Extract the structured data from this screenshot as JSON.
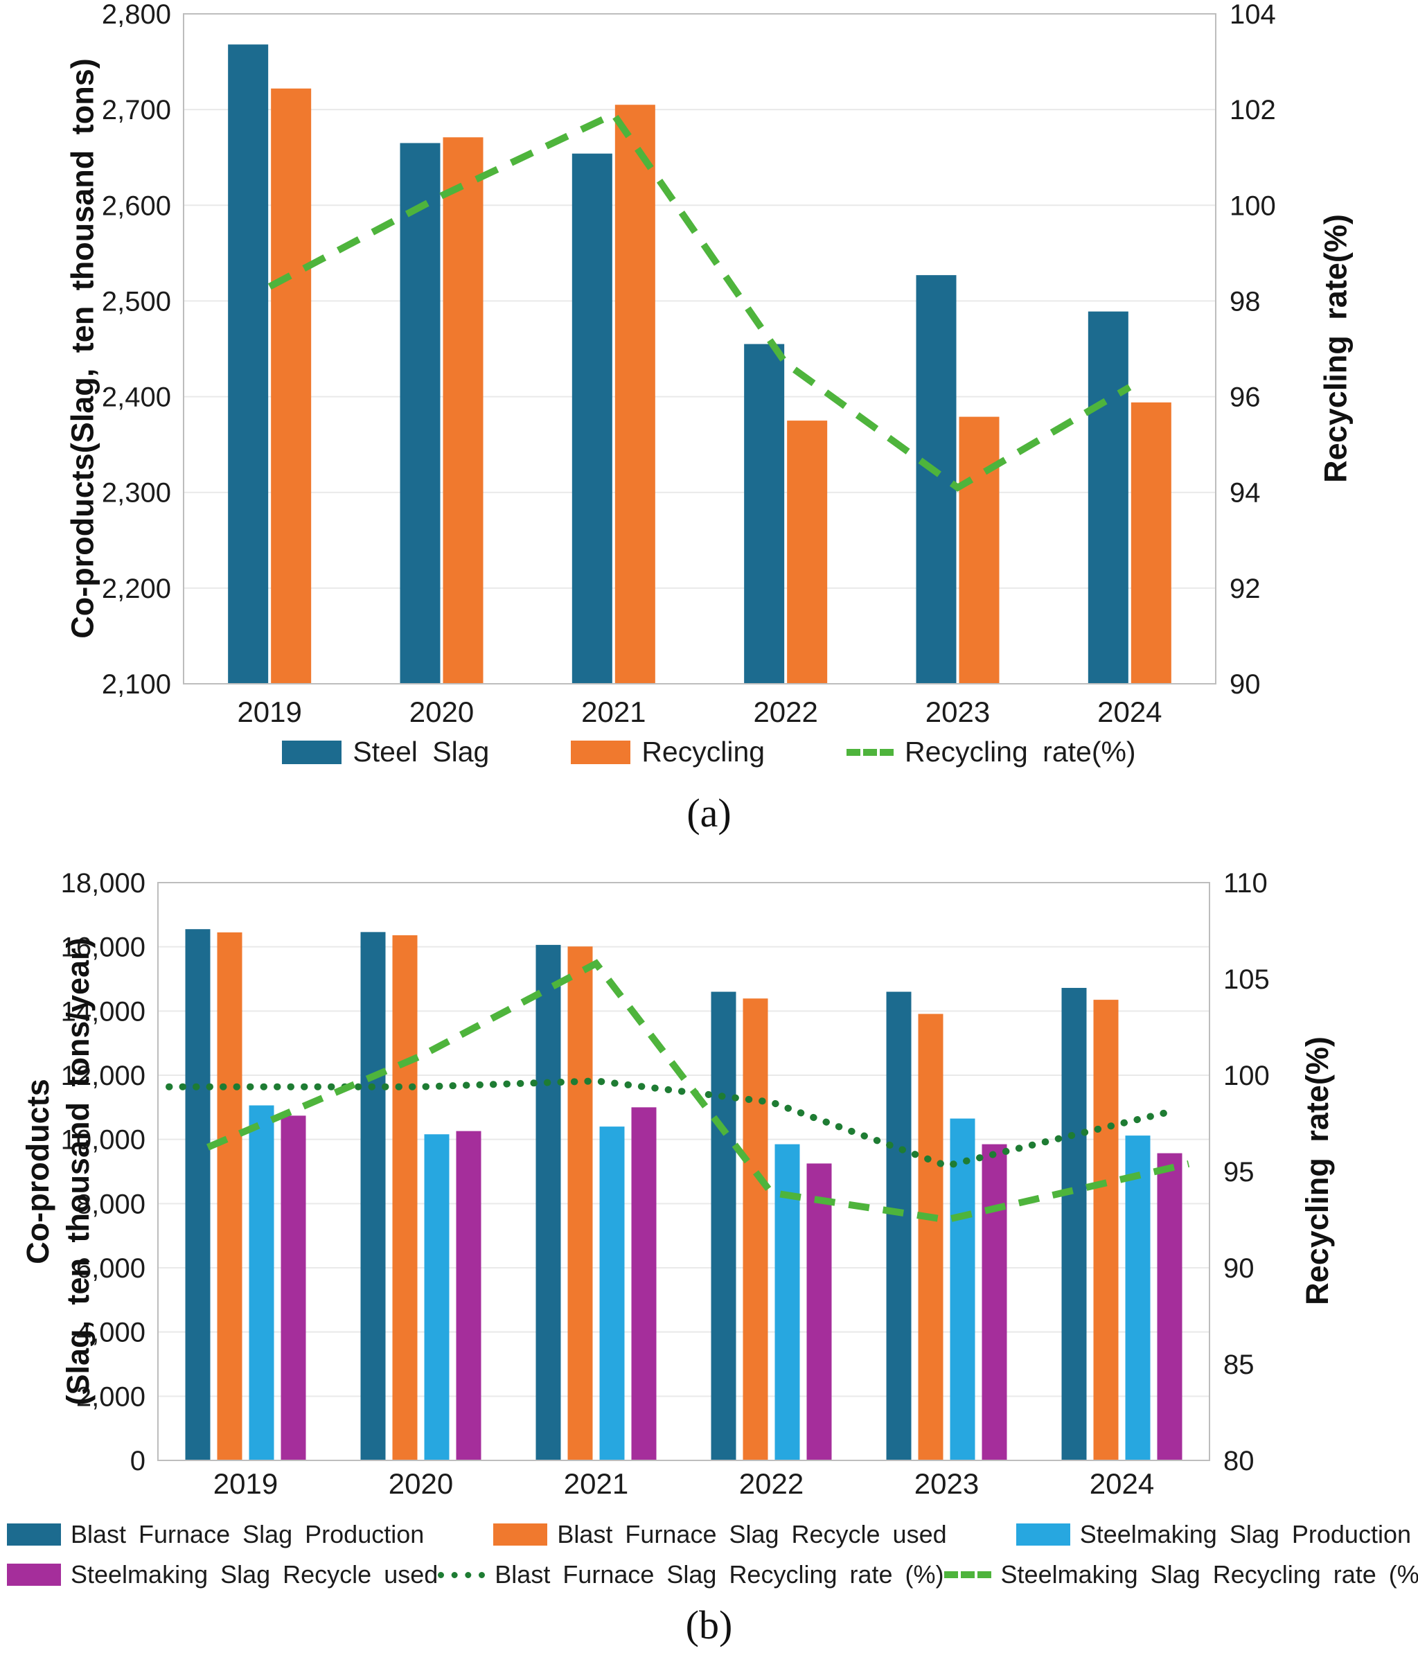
{
  "page": {
    "background": "#ffffff",
    "text_color": "#1b1b1b",
    "grid_color": "#e9e9e9",
    "border_color": "#bdbdbd"
  },
  "captions": {
    "a": "(a)",
    "b": "(b)"
  },
  "chart_data": [
    {
      "id": "a",
      "type": "bar",
      "subtype": "grouped-bars-with-line-dual-axis",
      "categories": [
        "2019",
        "2020",
        "2021",
        "2022",
        "2023",
        "2024"
      ],
      "series": [
        {
          "name": "Steel Slag",
          "kind": "bar",
          "axis": "left",
          "color": "#1c6b8f",
          "values": [
            2768,
            2665,
            2654,
            2455,
            2527,
            2489
          ]
        },
        {
          "name": "Recycling",
          "kind": "bar",
          "axis": "left",
          "color": "#f0792e",
          "values": [
            2722,
            2671,
            2705,
            2375,
            2379,
            2394
          ]
        },
        {
          "name": "Recycling rate(%)",
          "kind": "line",
          "line_style": "dashed",
          "axis": "right",
          "color": "#4eb43c",
          "values": [
            98.3,
            100.2,
            101.9,
            96.7,
            94.1,
            96.2
          ]
        }
      ],
      "left_axis": {
        "title": "Co-products(Slag, ten thousand tons)",
        "title_lines": [
          "Co-products(Slag, ten thousand tons)"
        ],
        "min": 2100,
        "max": 2800,
        "step": 100,
        "tick_labels": [
          "2,800",
          "2,700",
          "2,600",
          "2,500",
          "2,400",
          "2,300",
          "2,200",
          "2,100"
        ]
      },
      "right_axis": {
        "title": "Recycling rate(%)",
        "min": 90,
        "max": 104,
        "step": 2,
        "tick_labels": [
          "104",
          "102",
          "100",
          "98",
          "96",
          "94",
          "92",
          "90"
        ]
      },
      "grid": true,
      "legend_position": "bottom-center"
    },
    {
      "id": "b",
      "type": "bar",
      "subtype": "grouped-bars-with-lines-dual-axis",
      "categories": [
        "2019",
        "2020",
        "2021",
        "2022",
        "2023",
        "2024"
      ],
      "series": [
        {
          "name": "Blast Furnace Slag Production",
          "kind": "bar",
          "axis": "left",
          "color": "#1c6b8f",
          "values": [
            16550,
            16460,
            16060,
            14600,
            14600,
            14720
          ]
        },
        {
          "name": "Blast Furnace Slag Recycle used",
          "kind": "bar",
          "axis": "left",
          "color": "#f0792e",
          "values": [
            16450,
            16360,
            16010,
            14390,
            13910,
            14350
          ]
        },
        {
          "name": "Steelmaking Slag Production",
          "kind": "bar",
          "axis": "left",
          "color": "#27a7e0",
          "values": [
            11060,
            10160,
            10400,
            9850,
            10650,
            10120
          ]
        },
        {
          "name": "Steelmaking Slag Recycle used",
          "kind": "bar",
          "axis": "left",
          "color": "#a52e9b",
          "values": [
            10740,
            10260,
            11000,
            9250,
            9850,
            9570
          ]
        },
        {
          "name": "Blast Furnace Slag Recycling rate (%)",
          "kind": "line",
          "line_style": "dotted",
          "axis": "right",
          "color": "#1e7c33",
          "values": [
            99.4,
            99.4,
            99.7,
            98.6,
            95.3,
            97.5
          ]
        },
        {
          "name": "Steelmaking Slag Recycling rate (%)",
          "kind": "line",
          "line_style": "dashed",
          "axis": "right",
          "color": "#4eb43c",
          "values": [
            97.1,
            101.0,
            105.8,
            93.9,
            92.5,
            94.6
          ]
        }
      ],
      "left_axis": {
        "title": "Co-products (Slag, ten thousand tons/year)",
        "title_lines": [
          "Co-products",
          "(Slag, ten thousand tons/year)"
        ],
        "min": 0,
        "max": 18000,
        "step": 2000,
        "tick_labels": [
          "18,000",
          "16,000",
          "14,000",
          "12,000",
          "10,000",
          "8,000",
          "6,000",
          "4,000",
          "2,000",
          "0"
        ]
      },
      "right_axis": {
        "title": "Recycling rate(%)",
        "min": 80,
        "max": 110,
        "step": 5,
        "tick_labels": [
          "110",
          "105",
          "100",
          "95",
          "90",
          "85",
          "80"
        ]
      },
      "grid": true,
      "legend_position": "bottom-left-two-rows"
    }
  ]
}
